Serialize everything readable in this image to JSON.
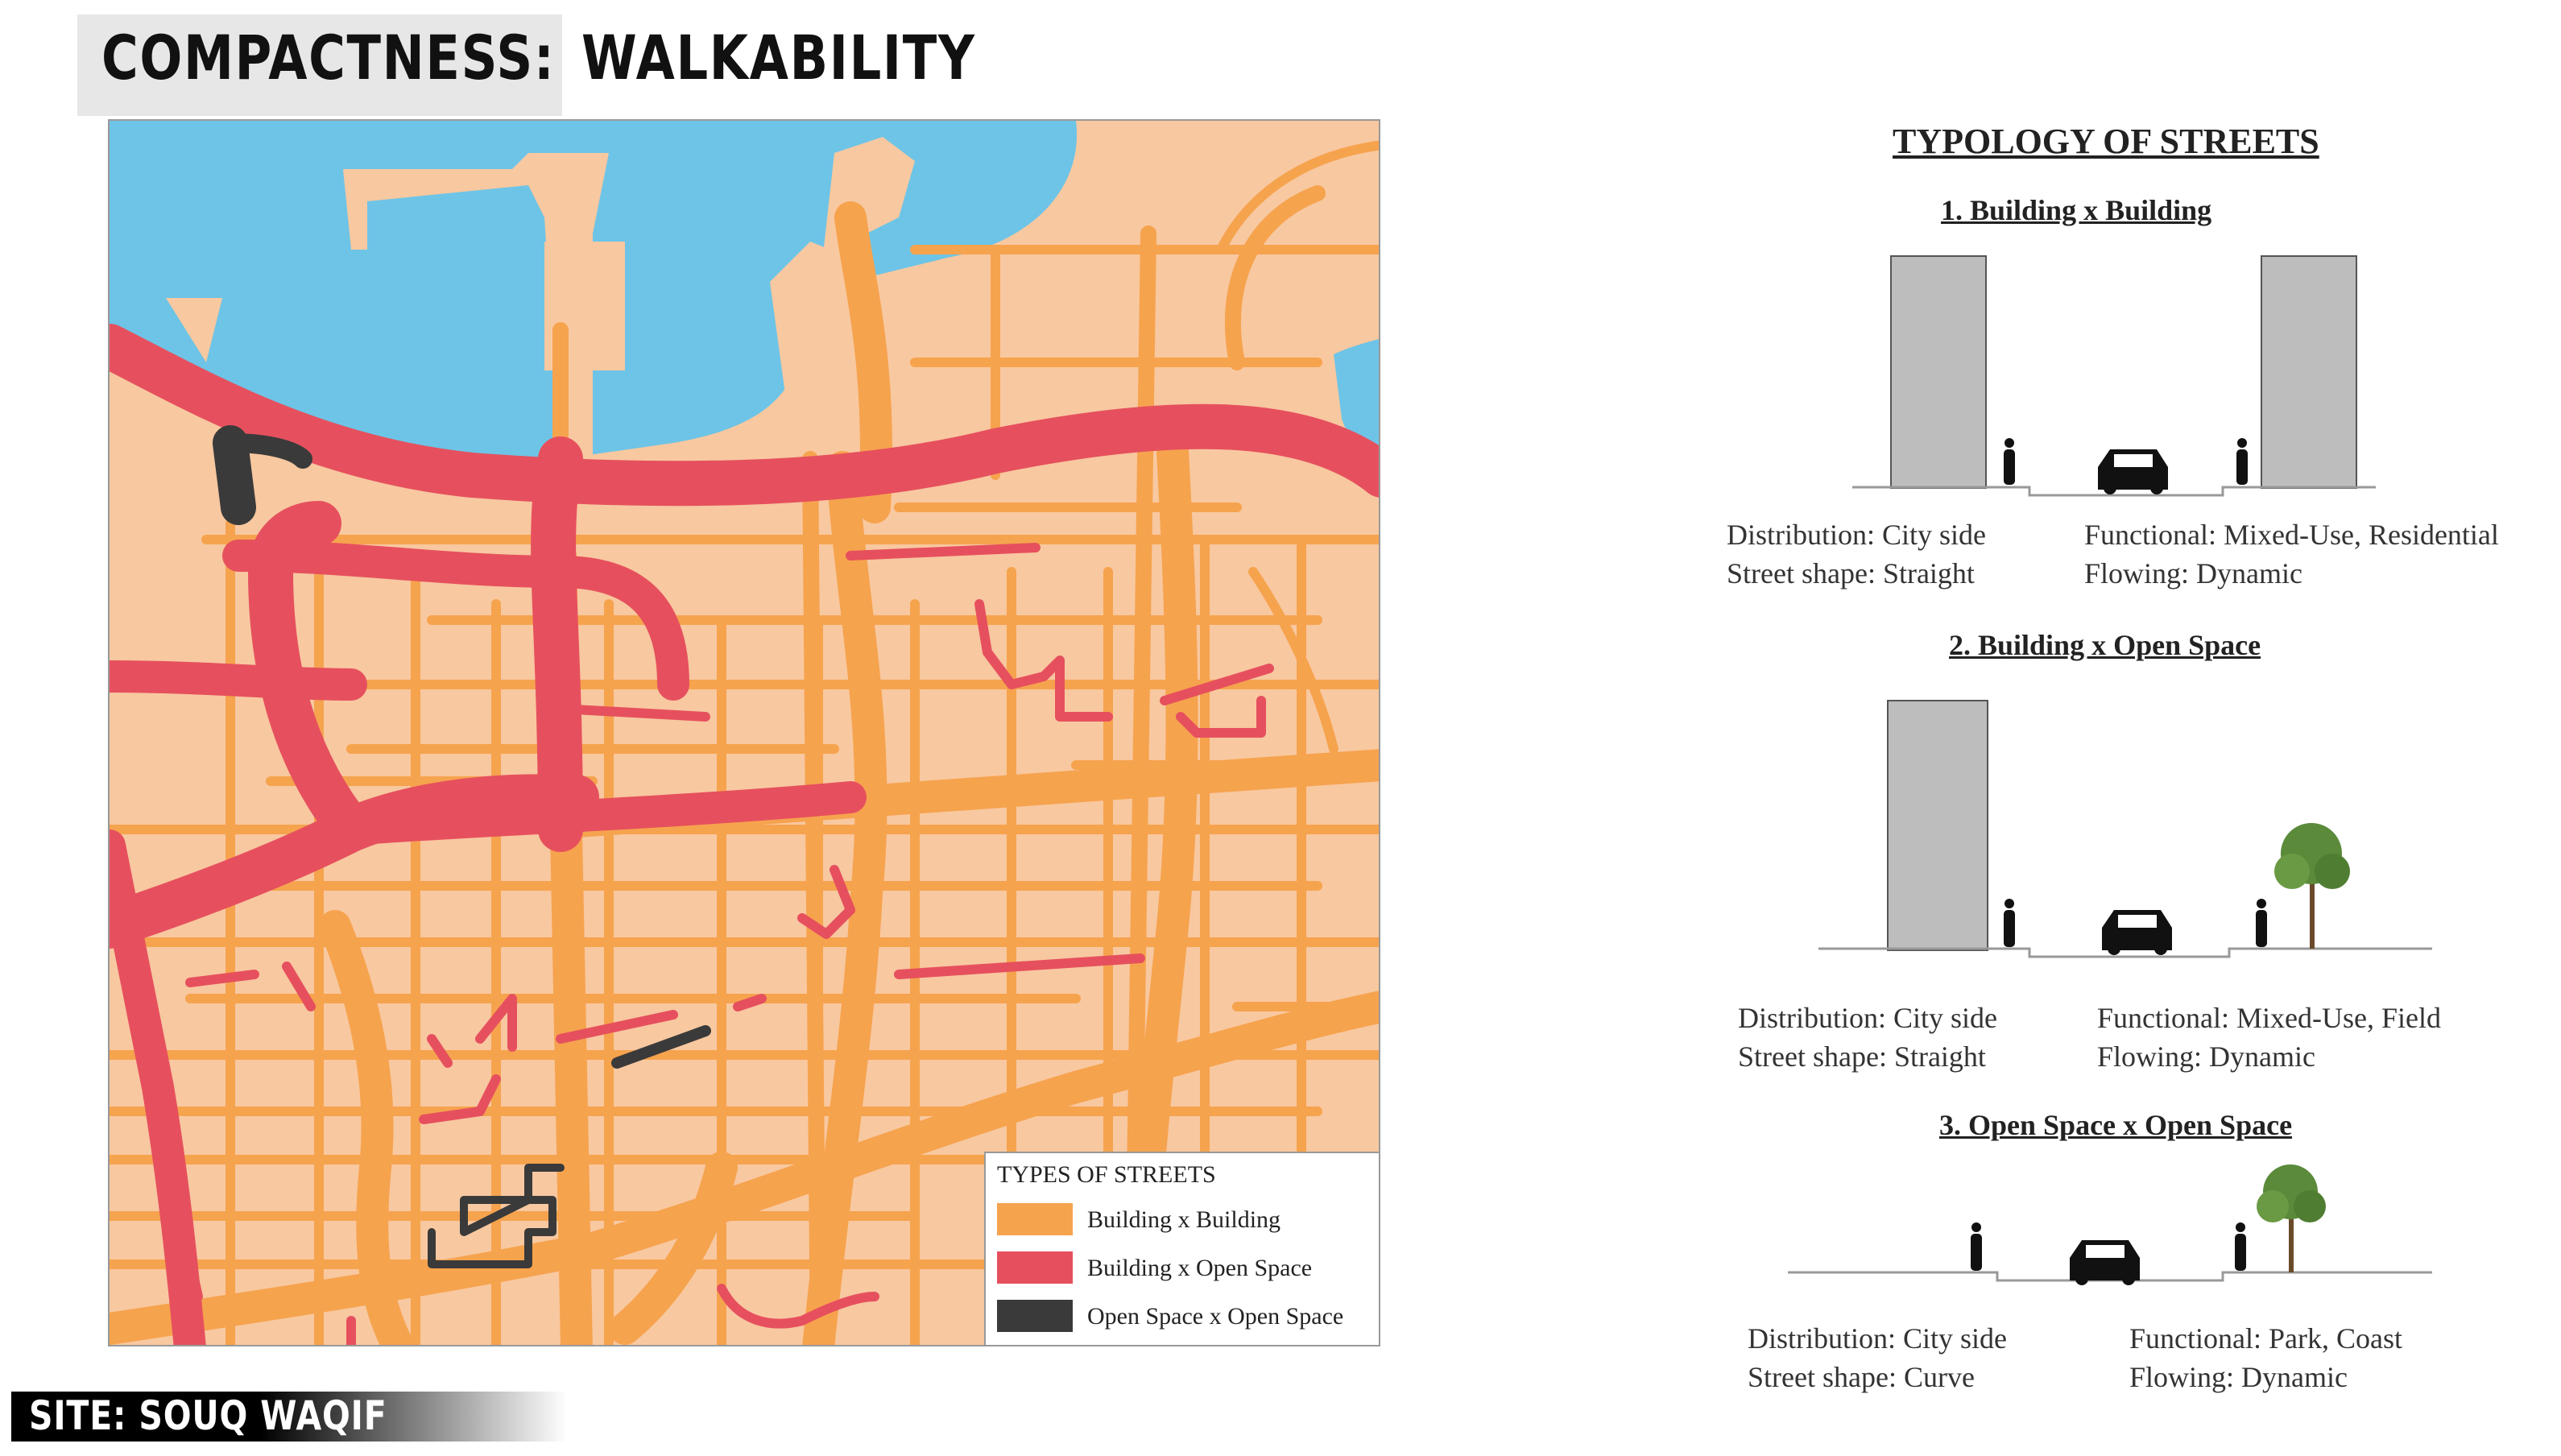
{
  "header": {
    "title_left": "COMPACTNESS:",
    "title_right": "WALKABILITY"
  },
  "site": {
    "label": "SITE: SOUQ WAQIF"
  },
  "colors": {
    "water": "#6ec4e6",
    "land": "#f8c8a0",
    "building_x_building": "#f6a34e",
    "building_x_open_space": "#e6505e",
    "open_space_x_open_space": "#3a3a3a",
    "building_block": "#bdbdbd",
    "tree": "#5a8a3a"
  },
  "legend": {
    "title": "TYPES OF STREETS",
    "items": [
      {
        "label": "Building x Building",
        "color": "#f6a34e"
      },
      {
        "label": "Building x Open Space",
        "color": "#e6505e"
      },
      {
        "label": "Open Space x Open Space",
        "color": "#3a3a3a"
      }
    ]
  },
  "typology": {
    "title": "TYPOLOGY OF STREETS",
    "sections": [
      {
        "heading": "1. Building x Building",
        "distribution": "Distribution: City side",
        "shape": "Street shape: Straight",
        "functional": "Functional: Mixed-Use, Residential",
        "flowing": "Flowing: Dynamic",
        "icons": [
          "building-icon",
          "person-icon",
          "car-icon",
          "person-icon",
          "building-icon"
        ]
      },
      {
        "heading": "2. Building x Open Space",
        "distribution": "Distribution: City side",
        "shape": "Street shape: Straight",
        "functional": "Functional: Mixed-Use, Field",
        "flowing": "Flowing: Dynamic",
        "icons": [
          "building-icon",
          "person-icon",
          "car-icon",
          "person-icon",
          "tree-icon"
        ]
      },
      {
        "heading": "3. Open Space x Open Space",
        "distribution": "Distribution: City side",
        "shape": "Street shape: Curve",
        "functional": "Functional: Park, Coast",
        "flowing": "Flowing: Dynamic",
        "icons": [
          "person-icon",
          "car-icon",
          "person-icon",
          "tree-icon"
        ]
      }
    ]
  }
}
